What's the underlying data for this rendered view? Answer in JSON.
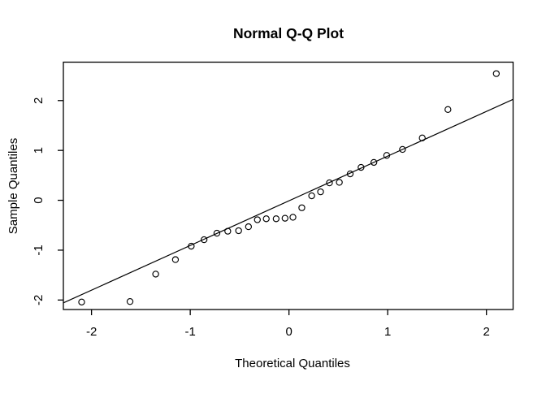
{
  "chart_data": {
    "type": "scatter",
    "subtype": "normal-qq-plot",
    "title": "Normal Q-Q Plot",
    "xlabel": "Theoretical Quantiles",
    "ylabel": "Sample Quantiles",
    "x_ticks": [
      -2,
      -1,
      0,
      1,
      2
    ],
    "y_ticks": [
      -2,
      -1,
      0,
      1,
      2
    ],
    "x_tick_labels": [
      "-2",
      "-1",
      "0",
      "1",
      "2"
    ],
    "y_tick_labels": [
      "-2",
      "-1",
      "0",
      "1",
      "2"
    ],
    "xlim": [
      -2.285,
      2.27
    ],
    "ylim": [
      -2.19,
      2.77
    ],
    "grid": false,
    "legend": null,
    "n_points": 28,
    "qqline": {
      "slope": 0.896,
      "intercept": -0.01
    },
    "points": [
      [
        -2.1,
        -2.04
      ],
      [
        -1.61,
        -2.03
      ],
      [
        -1.35,
        -1.48
      ],
      [
        -1.15,
        -1.19
      ],
      [
        -0.99,
        -0.92
      ],
      [
        -0.86,
        -0.79
      ],
      [
        -0.73,
        -0.66
      ],
      [
        -0.62,
        -0.62
      ],
      [
        -0.51,
        -0.61
      ],
      [
        -0.41,
        -0.53
      ],
      [
        -0.32,
        -0.39
      ],
      [
        -0.23,
        -0.37
      ],
      [
        -0.13,
        -0.37
      ],
      [
        -0.04,
        -0.36
      ],
      [
        0.04,
        -0.34
      ],
      [
        0.13,
        -0.15
      ],
      [
        0.23,
        0.09
      ],
      [
        0.32,
        0.17
      ],
      [
        0.41,
        0.35
      ],
      [
        0.51,
        0.36
      ],
      [
        0.62,
        0.53
      ],
      [
        0.73,
        0.66
      ],
      [
        0.86,
        0.76
      ],
      [
        0.99,
        0.9
      ],
      [
        1.15,
        1.02
      ],
      [
        1.35,
        1.25
      ],
      [
        1.61,
        1.82
      ],
      [
        2.1,
        2.54
      ]
    ]
  },
  "colors": {
    "background": "#ffffff",
    "foreground": "#000000"
  }
}
